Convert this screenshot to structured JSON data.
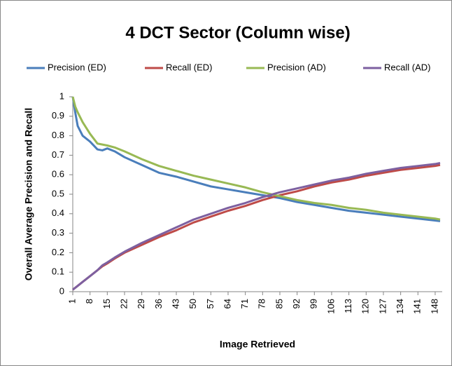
{
  "chart_data": {
    "type": "line",
    "title": "4 DCT Sector (Column wise)",
    "x_label": "Image Retrieved",
    "y_label": "Overall Average Precision and Recall",
    "x": [
      1,
      2,
      3,
      5,
      8,
      11,
      13,
      15,
      18,
      22,
      29,
      36,
      43,
      50,
      57,
      64,
      71,
      78,
      85,
      92,
      99,
      106,
      113,
      120,
      127,
      134,
      141,
      148,
      150
    ],
    "series": [
      {
        "name": "Precision (ED)",
        "color": "#4a7ebb",
        "values": [
          1.0,
          0.92,
          0.85,
          0.8,
          0.77,
          0.73,
          0.725,
          0.735,
          0.72,
          0.69,
          0.65,
          0.61,
          0.59,
          0.565,
          0.54,
          0.525,
          0.51,
          0.495,
          0.48,
          0.46,
          0.445,
          0.43,
          0.415,
          0.405,
          0.395,
          0.385,
          0.375,
          0.365,
          0.362
        ]
      },
      {
        "name": "Recall (ED)",
        "color": "#be4b48",
        "values": [
          0.01,
          0.02,
          0.03,
          0.05,
          0.08,
          0.11,
          0.13,
          0.145,
          0.17,
          0.2,
          0.24,
          0.28,
          0.315,
          0.355,
          0.385,
          0.415,
          0.44,
          0.47,
          0.495,
          0.515,
          0.54,
          0.56,
          0.575,
          0.595,
          0.61,
          0.625,
          0.635,
          0.645,
          0.65
        ]
      },
      {
        "name": "Precision (AD)",
        "color": "#98b954",
        "values": [
          1.0,
          0.95,
          0.92,
          0.87,
          0.81,
          0.76,
          0.755,
          0.75,
          0.74,
          0.72,
          0.68,
          0.645,
          0.62,
          0.595,
          0.575,
          0.555,
          0.535,
          0.51,
          0.49,
          0.47,
          0.455,
          0.445,
          0.43,
          0.42,
          0.405,
          0.395,
          0.385,
          0.375,
          0.37
        ]
      },
      {
        "name": "Recall (AD)",
        "color": "#7d60a0",
        "values": [
          0.01,
          0.02,
          0.03,
          0.05,
          0.08,
          0.11,
          0.135,
          0.15,
          0.175,
          0.205,
          0.25,
          0.29,
          0.33,
          0.37,
          0.4,
          0.43,
          0.455,
          0.485,
          0.51,
          0.53,
          0.55,
          0.57,
          0.585,
          0.605,
          0.62,
          0.635,
          0.645,
          0.655,
          0.66
        ]
      }
    ],
    "xlim": [
      1,
      150
    ],
    "xticks": [
      1,
      8,
      15,
      22,
      29,
      36,
      43,
      50,
      57,
      64,
      71,
      78,
      85,
      92,
      99,
      106,
      113,
      120,
      127,
      134,
      141,
      148
    ],
    "ylim": [
      0,
      1
    ],
    "yticks": [
      0,
      0.1,
      0.2,
      0.3,
      0.4,
      0.5,
      0.6,
      0.7,
      0.8,
      0.9,
      1
    ],
    "legend": "top",
    "grid": false
  }
}
